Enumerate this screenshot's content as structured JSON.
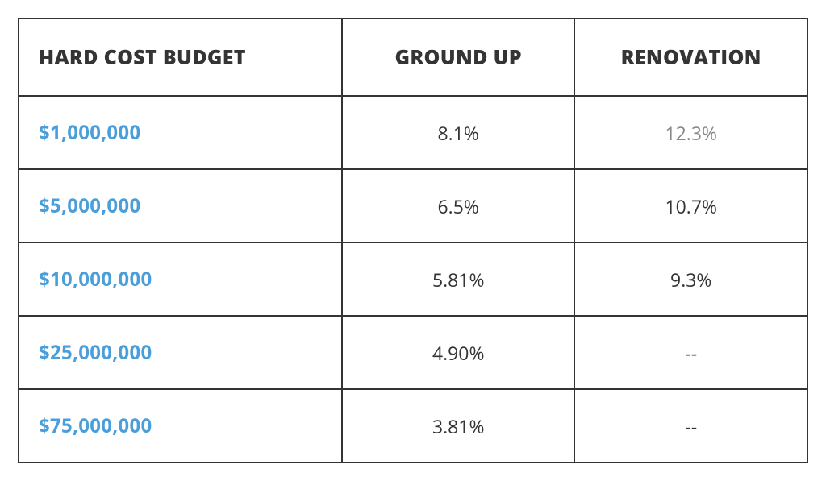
{
  "table": {
    "type": "table",
    "columns": [
      "HARD COST BUDGET",
      "GROUND UP",
      "RENOVATION"
    ],
    "column_widths_pct": [
      41,
      29.5,
      29.5
    ],
    "column_align": [
      "left",
      "center",
      "center"
    ],
    "header_fontsize": 25,
    "header_fontweight": 800,
    "header_color": "#343434",
    "cell_fontsize": 23,
    "cell_color": "#343434",
    "budget_cell_color": "#4a9ed9",
    "budget_cell_fontweight": 700,
    "budget_cell_fontsize": 24,
    "border_color": "#343434",
    "border_width": 2.5,
    "background_color": "#ffffff",
    "muted_color": "#888888",
    "rows": [
      {
        "budget": "$1,000,000",
        "ground_up": "8.1%",
        "renovation": "12.3%",
        "renovation_muted": true
      },
      {
        "budget": "$5,000,000",
        "ground_up": "6.5%",
        "renovation": "10.7%",
        "renovation_muted": false
      },
      {
        "budget": "$10,000,000",
        "ground_up": "5.81%",
        "renovation": "9.3%",
        "renovation_muted": false
      },
      {
        "budget": "$25,000,000",
        "ground_up": "4.90%",
        "renovation": "--",
        "renovation_muted": false
      },
      {
        "budget": "$75,000,000",
        "ground_up": "3.81%",
        "renovation": "--",
        "renovation_muted": false
      }
    ]
  }
}
